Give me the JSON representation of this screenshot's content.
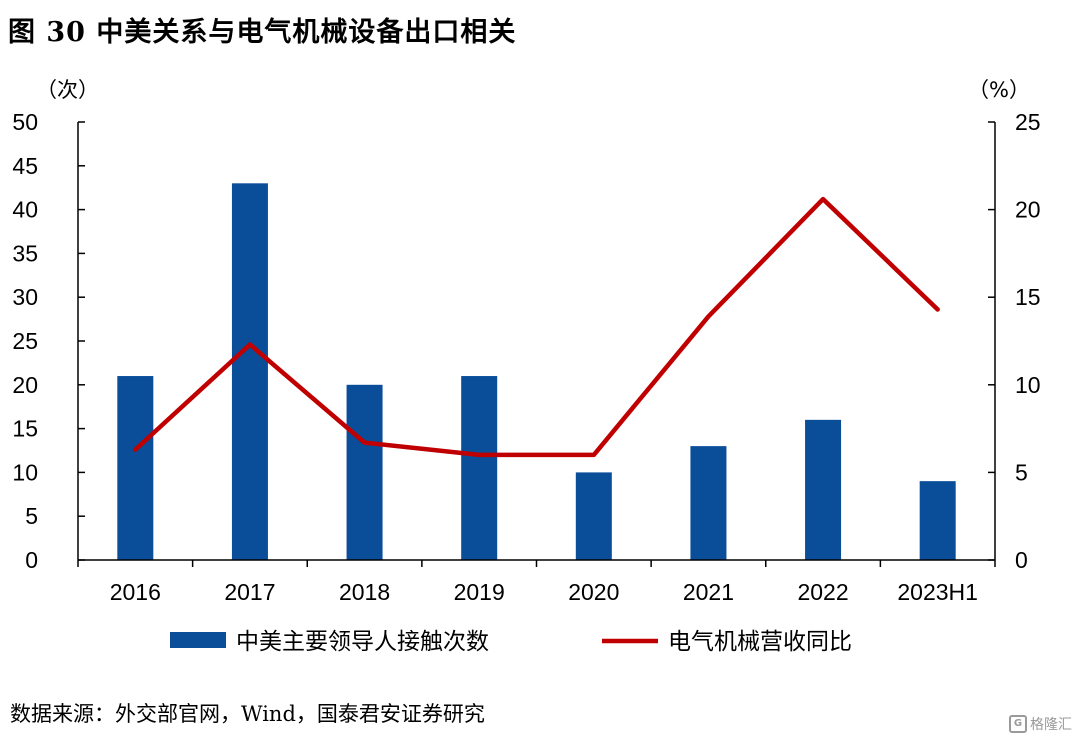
{
  "header": {
    "title": "图 30 中美关系与电气机械设备出口相关"
  },
  "footer": {
    "source": "数据来源：外交部官网，Wind，国泰君安证券研究"
  },
  "watermark": {
    "text": "格隆汇"
  },
  "chart_data": {
    "type": "bar",
    "categories": [
      "2016",
      "2017",
      "2018",
      "2019",
      "2020",
      "2021",
      "2022",
      "2023H1"
    ],
    "series": [
      {
        "name": "中美主要领导人接触次数",
        "type": "bar",
        "axis": "left",
        "color": "#0a4d99",
        "values": [
          21,
          43,
          20,
          21,
          10,
          13,
          16,
          9
        ]
      },
      {
        "name": "电气机械营收同比",
        "type": "line",
        "axis": "right",
        "color": "#c00000",
        "values": [
          6.3,
          12.3,
          6.7,
          6.0,
          6.0,
          13.9,
          20.6,
          14.3
        ]
      }
    ],
    "y_left": {
      "unit_label": "（次）",
      "min": 0,
      "max": 50,
      "step": 5
    },
    "y_right": {
      "unit_label": "（%）",
      "min": 0,
      "max": 25,
      "step": 5
    },
    "grid": false,
    "legend": "bottom"
  }
}
